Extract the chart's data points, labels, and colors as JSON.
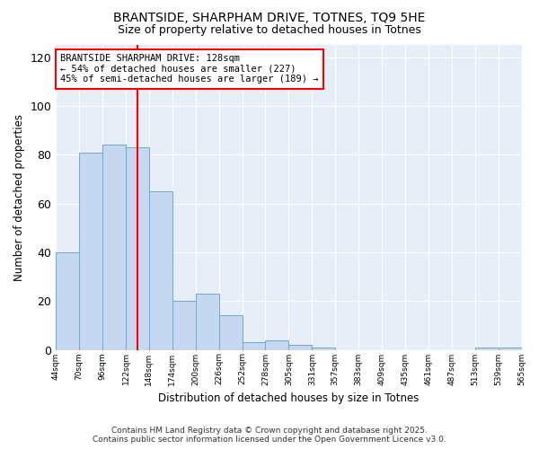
{
  "title1": "BRANTSIDE, SHARPHAM DRIVE, TOTNES, TQ9 5HE",
  "title2": "Size of property relative to detached houses in Totnes",
  "xlabel": "Distribution of detached houses by size in Totnes",
  "ylabel": "Number of detached properties",
  "bar_values": [
    40,
    81,
    84,
    83,
    65,
    20,
    23,
    14,
    3,
    4,
    2,
    1,
    0,
    0,
    0,
    0,
    0,
    0,
    1,
    1
  ],
  "bar_labels": [
    "44sqm",
    "70sqm",
    "96sqm",
    "122sqm",
    "148sqm",
    "174sqm",
    "200sqm",
    "226sqm",
    "252sqm",
    "278sqm",
    "305sqm",
    "331sqm",
    "357sqm",
    "383sqm",
    "409sqm",
    "435sqm",
    "461sqm",
    "487sqm",
    "513sqm",
    "539sqm",
    "565sqm"
  ],
  "bar_color": "#c5d8f0",
  "bar_edge_color": "#6aaad4",
  "annotation_text_line1": "BRANTSIDE SHARPHAM DRIVE: 128sqm",
  "annotation_text_line2": "← 54% of detached houses are smaller (227)",
  "annotation_text_line3": "45% of semi-detached houses are larger (189) →",
  "annotation_box_color": "white",
  "annotation_box_edge_color": "red",
  "vline_color": "red",
  "vline_x": 3.0,
  "ylim": [
    0,
    125
  ],
  "yticks": [
    0,
    20,
    40,
    60,
    80,
    100,
    120
  ],
  "plot_bg_color": "#e8eef8",
  "fig_bg_color": "#ffffff",
  "grid_color": "#ffffff",
  "footer_line1": "Contains HM Land Registry data © Crown copyright and database right 2025.",
  "footer_line2": "Contains public sector information licensed under the Open Government Licence v3.0."
}
